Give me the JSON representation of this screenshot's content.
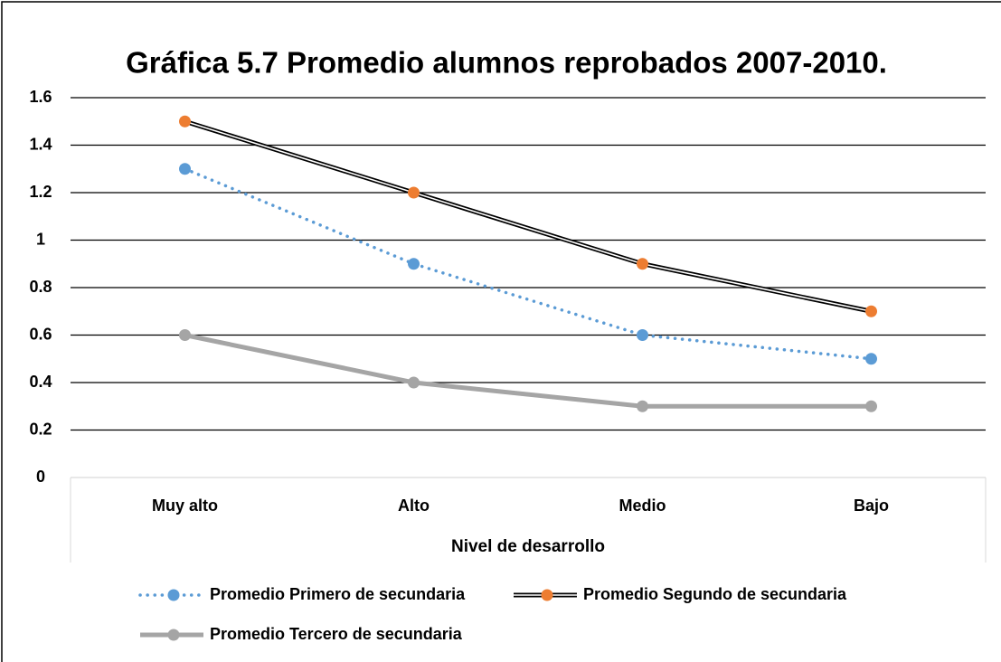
{
  "chart_data": {
    "type": "line",
    "title": "Gráfica 5.7 Promedio alumnos reprobados 2007-2010.",
    "x_label": "Nivel de desarrollo",
    "categories": [
      "Muy alto",
      "Alto",
      "Medio",
      "Bajo"
    ],
    "series": [
      {
        "name": "Promedio Primero de secundaria",
        "color": "#5b9bd5",
        "line_style": "dotted",
        "values": [
          1.3,
          0.9,
          0.6,
          0.5
        ]
      },
      {
        "name": "Promedio Segundo de secundaria",
        "color": "#ed7d31",
        "line_style": "double",
        "values": [
          1.5,
          1.2,
          0.9,
          0.7
        ]
      },
      {
        "name": "Promedio Tercero de secundaria",
        "color": "#a5a5a5",
        "line_style": "solid",
        "values": [
          0.6,
          0.4,
          0.3,
          0.3
        ]
      }
    ],
    "ylim": [
      0,
      1.6
    ],
    "yticks": [
      0,
      0.2,
      0.4,
      0.6,
      0.8,
      1,
      1.2,
      1.4,
      1.6
    ],
    "grid": true
  }
}
